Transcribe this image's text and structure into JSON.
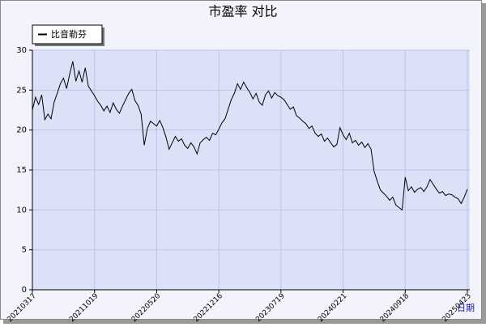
{
  "chart_data": {
    "type": "line",
    "title": "市盈率  对比",
    "x_label": "日期",
    "categories": [
      "20210317",
      null,
      null,
      null,
      null,
      null,
      null,
      null,
      null,
      null,
      null,
      null,
      null,
      null,
      null,
      null,
      null,
      null,
      null,
      null,
      "20211019",
      null,
      null,
      null,
      null,
      null,
      null,
      null,
      null,
      null,
      null,
      null,
      null,
      null,
      null,
      null,
      null,
      null,
      null,
      null,
      "20220520",
      null,
      null,
      null,
      null,
      null,
      null,
      null,
      null,
      null,
      null,
      null,
      null,
      null,
      null,
      null,
      null,
      null,
      null,
      null,
      "20221216",
      null,
      null,
      null,
      null,
      null,
      null,
      null,
      null,
      null,
      null,
      null,
      null,
      null,
      null,
      null,
      null,
      null,
      null,
      null,
      "20230719",
      null,
      null,
      null,
      null,
      null,
      null,
      null,
      null,
      null,
      null,
      null,
      null,
      null,
      null,
      null,
      null,
      null,
      null,
      null,
      "20240221",
      null,
      null,
      null,
      null,
      null,
      null,
      null,
      null,
      null,
      null,
      null,
      null,
      null,
      null,
      null,
      null,
      null,
      null,
      null,
      "20240918",
      null,
      null,
      null,
      null,
      null,
      null,
      null,
      null,
      null,
      null,
      null,
      null,
      null,
      null,
      null,
      null,
      null,
      null,
      null,
      "20250423"
    ],
    "series": [
      {
        "name": "比音勒芬",
        "color": "#000000",
        "values": [
          22.5,
          24.1,
          23.2,
          24.4,
          21.3,
          22.0,
          21.4,
          23.5,
          24.6,
          25.8,
          26.5,
          25.2,
          27.0,
          28.6,
          26.1,
          27.4,
          26.0,
          27.8,
          25.5,
          24.9,
          24.3,
          23.6,
          23.1,
          22.4,
          23.0,
          22.2,
          23.4,
          22.6,
          22.1,
          23.0,
          23.8,
          24.6,
          25.1,
          23.7,
          23.1,
          22.0,
          18.1,
          20.2,
          21.1,
          20.8,
          20.5,
          21.2,
          20.3,
          19.1,
          17.6,
          18.4,
          19.2,
          18.6,
          18.9,
          18.1,
          17.7,
          18.4,
          17.9,
          17.0,
          18.4,
          18.8,
          19.1,
          18.7,
          19.6,
          19.4,
          20.1,
          20.9,
          21.4,
          22.6,
          23.8,
          24.6,
          25.8,
          25.1,
          26.0,
          25.3,
          24.7,
          23.9,
          24.6,
          23.5,
          23.1,
          24.4,
          24.9,
          24.0,
          24.7,
          24.3,
          24.1,
          23.8,
          23.2,
          22.6,
          22.9,
          21.8,
          21.5,
          21.1,
          20.8,
          20.2,
          20.5,
          19.6,
          19.2,
          19.5,
          18.6,
          19.0,
          18.4,
          17.9,
          18.2,
          20.3,
          19.4,
          18.8,
          19.6,
          18.4,
          18.7,
          18.1,
          18.5,
          17.8,
          18.3,
          17.6,
          14.8,
          13.6,
          12.5,
          12.1,
          11.7,
          11.2,
          11.6,
          10.6,
          10.3,
          10.0,
          14.1,
          12.4,
          12.9,
          12.2,
          12.6,
          12.8,
          12.3,
          12.9,
          13.8,
          13.2,
          12.6,
          12.1,
          12.3,
          11.8,
          12.0,
          11.9,
          11.6,
          11.4,
          10.8,
          11.6,
          12.6
        ]
      }
    ],
    "ylim": [
      0,
      30
    ],
    "yticks": [
      0,
      5,
      10,
      15,
      20,
      25,
      30
    ],
    "grid": true,
    "legend": "top-left"
  }
}
